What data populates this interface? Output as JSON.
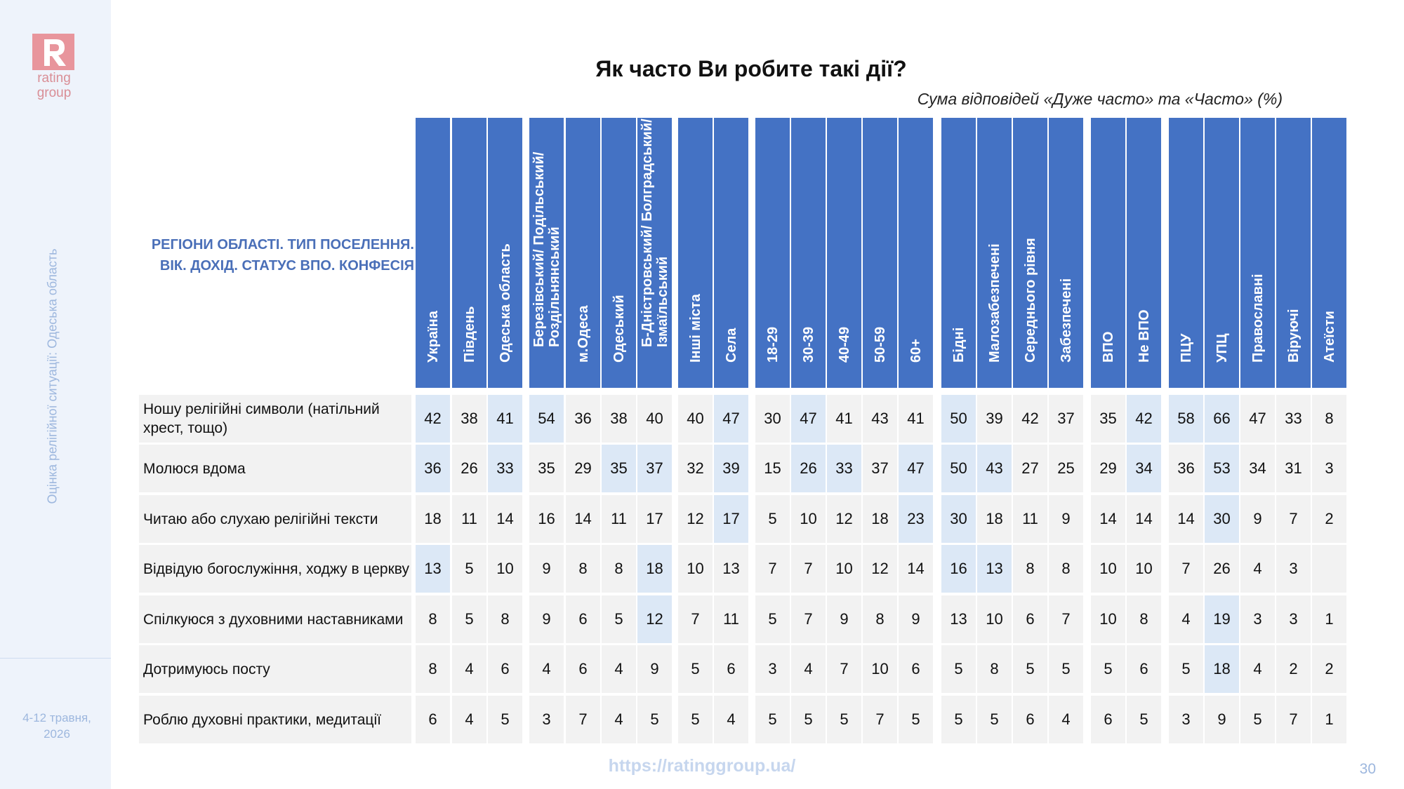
{
  "brand": {
    "logo_text_1": "rating",
    "logo_text_2": "group",
    "logo_color": "#e8959c"
  },
  "sidebar": {
    "side_title": "Оцінка релігійної ситуації: Одеська область",
    "date": "4-12 травня,\n2026"
  },
  "title": "Як часто Ви робите такі дії?",
  "subtitle": "Сума відповідей «Дуже часто» та «Часто» (%)",
  "header_label": "РЕГІОНИ ОБЛАСТІ. ТИП ПОСЕЛЕННЯ.\nВІК. ДОХІД. СТАТУС ВПО. КОНФЕСІЯ",
  "columns": [
    "Україна",
    "Південь",
    "Одеська область",
    "Березівський/ Подільський/\nРоздільнянський",
    "м.Одеса",
    "Одеський",
    "Б-Дністровський/ Болградський/\nІзмаїльський",
    "Інші міста",
    "Села",
    "18-29",
    "30-39",
    "40-49",
    "50-59",
    "60+",
    "Бідні",
    "Малозабезпечені",
    "Середнього рівня",
    "Забезпечені",
    "ВПО",
    "Не ВПО",
    "ПЦУ",
    "УПЦ",
    "Православні",
    "Віруючі",
    "Атеїсти"
  ],
  "rows": [
    {
      "label": "Ношу релігійні символи (натільний хрест, тощо)",
      "values": [
        "42",
        "38",
        "41",
        "54",
        "36",
        "38",
        "40",
        "40",
        "47",
        "30",
        "47",
        "41",
        "43",
        "41",
        "50",
        "39",
        "42",
        "37",
        "35",
        "42",
        "58",
        "66",
        "47",
        "33",
        "8"
      ]
    },
    {
      "label": "Молюся вдома",
      "values": [
        "36",
        "26",
        "33",
        "35",
        "29",
        "35",
        "37",
        "32",
        "39",
        "15",
        "26",
        "33",
        "37",
        "47",
        "50",
        "43",
        "27",
        "25",
        "29",
        "34",
        "36",
        "53",
        "34",
        "31",
        "3"
      ]
    },
    {
      "label": "Читаю або слухаю релігійні тексти",
      "values": [
        "18",
        "11",
        "14",
        "16",
        "14",
        "11",
        "17",
        "12",
        "17",
        "5",
        "10",
        "12",
        "18",
        "23",
        "30",
        "18",
        "11",
        "9",
        "14",
        "14",
        "14",
        "30",
        "9",
        "7",
        "2"
      ]
    },
    {
      "label": "Відвідую богослужіння, ходжу в церкву",
      "values": [
        "13",
        "5",
        "10",
        "9",
        "8",
        "8",
        "18",
        "10",
        "13",
        "7",
        "7",
        "10",
        "12",
        "14",
        "16",
        "13",
        "8",
        "8",
        "10",
        "10",
        "7",
        "26",
        "4",
        "3",
        ""
      ]
    },
    {
      "label": "Спілкуюся з духовними наставниками",
      "values": [
        "8",
        "5",
        "8",
        "9",
        "6",
        "5",
        "12",
        "7",
        "11",
        "5",
        "7",
        "9",
        "8",
        "9",
        "13",
        "10",
        "6",
        "7",
        "10",
        "8",
        "4",
        "19",
        "3",
        "3",
        "1"
      ]
    },
    {
      "label": "Дотримуюсь посту",
      "values": [
        "8",
        "4",
        "6",
        "4",
        "6",
        "4",
        "9",
        "5",
        "6",
        "3",
        "4",
        "7",
        "10",
        "6",
        "5",
        "8",
        "5",
        "5",
        "5",
        "6",
        "5",
        "18",
        "4",
        "2",
        "2"
      ]
    },
    {
      "label": "Роблю духовні практики, медитації",
      "values": [
        "6",
        "4",
        "5",
        "3",
        "7",
        "4",
        "5",
        "5",
        "4",
        "5",
        "5",
        "5",
        "7",
        "5",
        "5",
        "5",
        "6",
        "4",
        "6",
        "5",
        "3",
        "9",
        "5",
        "7",
        "1"
      ]
    }
  ],
  "highlights": [
    [
      0,
      2,
      3,
      8,
      10,
      14,
      19,
      20,
      21
    ],
    [
      0,
      2,
      5,
      6,
      8,
      10,
      11,
      13,
      14,
      15,
      19,
      21
    ],
    [
      8,
      13,
      14,
      21
    ],
    [
      0,
      6,
      14,
      15
    ],
    [
      6,
      21
    ],
    [
      21
    ],
    []
  ],
  "colors": {
    "header_bg": "#4472c4",
    "cell_bg": "#f2f2f2",
    "highlight_bg": "#dce8f6",
    "label_color": "#4a6fb8"
  },
  "footer": {
    "url": "https://ratinggroup.ua/",
    "page": "30"
  }
}
